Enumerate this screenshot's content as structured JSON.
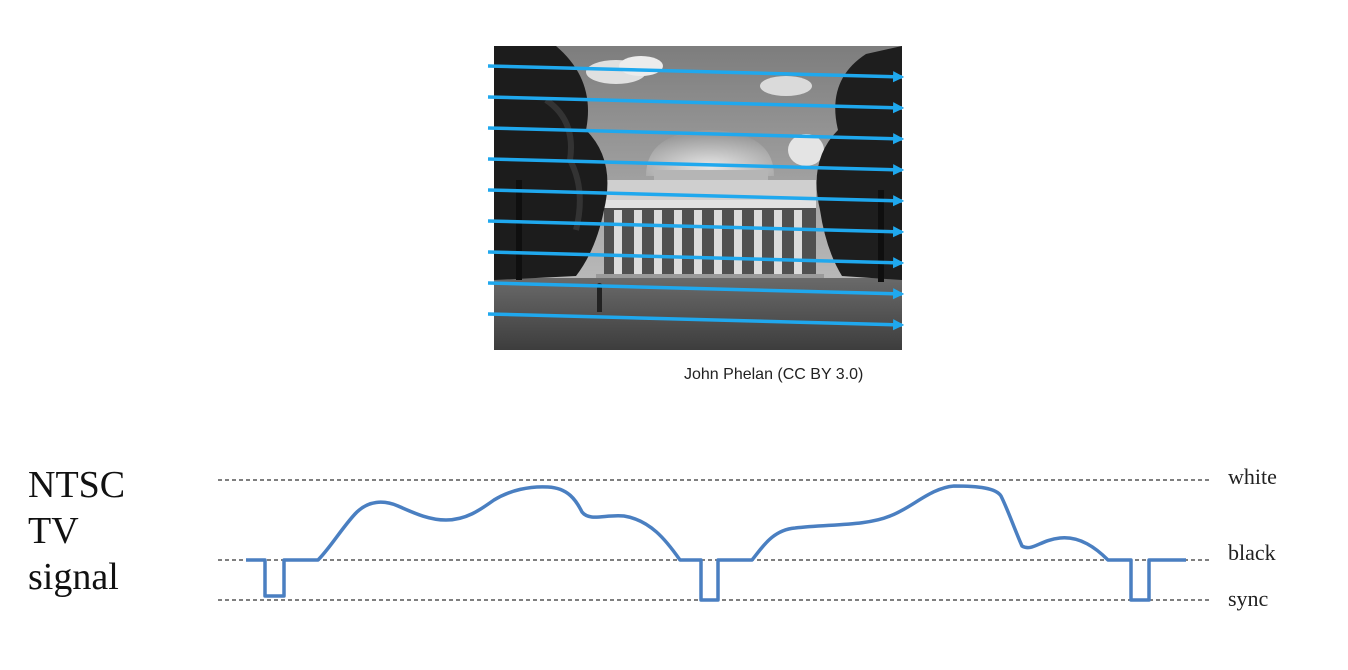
{
  "photo": {
    "caption": "John Phelan (CC BY 3.0)",
    "scan_line_count": 9,
    "scan_line_color": "#1fa8ee"
  },
  "signal": {
    "title_lines": [
      "NTSC",
      "TV",
      "signal"
    ],
    "levels": {
      "white": "white",
      "black": "black",
      "sync": "sync"
    },
    "waveform_color": "#4a7fc1",
    "dashed_line_color": "#333333"
  }
}
